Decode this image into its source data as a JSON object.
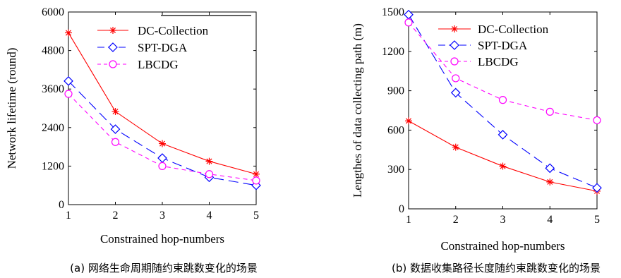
{
  "chart_data": [
    {
      "type": "line",
      "panel": "a",
      "xlabel": "Constrained hop-numbers",
      "ylabel": "Network lifetime (round)",
      "caption": "(a) 网络生命周期随约束跳数变化的场景",
      "xlim": [
        1,
        5
      ],
      "ylim": [
        0,
        6000
      ],
      "x_ticks": [
        1,
        2,
        3,
        4,
        5
      ],
      "y_ticks": [
        0,
        1200,
        2400,
        3600,
        4800,
        6000
      ],
      "legend_position": "top-right",
      "series": [
        {
          "name": "DC-Collection",
          "color": "#ff0000",
          "marker": "star",
          "dash": "solid",
          "x": [
            1,
            2,
            3,
            4,
            5
          ],
          "values": [
            5350,
            2900,
            1900,
            1350,
            950
          ]
        },
        {
          "name": "SPT-DGA",
          "color": "#0000ff",
          "marker": "diamond",
          "dash": "longdash",
          "x": [
            1,
            2,
            3,
            4,
            5
          ],
          "values": [
            3850,
            2350,
            1450,
            850,
            600
          ]
        },
        {
          "name": "LBCDG",
          "color": "#ff00ff",
          "marker": "circle",
          "dash": "shortdash",
          "x": [
            1,
            2,
            3,
            4,
            5
          ],
          "values": [
            3450,
            1950,
            1200,
            950,
            750
          ]
        }
      ]
    },
    {
      "type": "line",
      "panel": "b",
      "xlabel": "Constrained hop-numbers",
      "ylabel": "Lengthes of data collecting path (m)",
      "caption": "(b) 数据收集路径长度随约束跳数变化的场景",
      "xlim": [
        1,
        5
      ],
      "ylim": [
        0,
        1500
      ],
      "x_ticks": [
        1,
        2,
        3,
        4,
        5
      ],
      "y_ticks": [
        0,
        300,
        600,
        900,
        1200,
        1500
      ],
      "legend_position": "top-right",
      "series": [
        {
          "name": "DC-Collection",
          "color": "#ff0000",
          "marker": "star",
          "dash": "solid",
          "x": [
            1,
            2,
            3,
            4,
            5
          ],
          "values": [
            670,
            470,
            325,
            205,
            135
          ]
        },
        {
          "name": "SPT-DGA",
          "color": "#0000ff",
          "marker": "diamond",
          "dash": "longdash",
          "x": [
            1,
            2,
            3,
            4,
            5
          ],
          "values": [
            1480,
            885,
            565,
            310,
            160
          ]
        },
        {
          "name": "LBCDG",
          "color": "#ff00ff",
          "marker": "circle",
          "dash": "shortdash",
          "x": [
            1,
            2,
            3,
            4,
            5
          ],
          "values": [
            1420,
            995,
            830,
            740,
            675
          ]
        }
      ]
    }
  ]
}
